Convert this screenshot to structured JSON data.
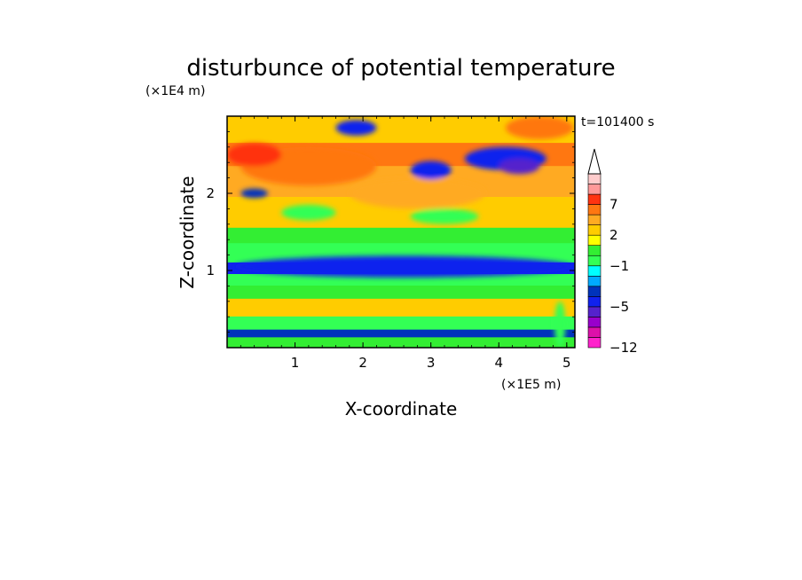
{
  "chart_data": {
    "type": "heatmap",
    "title": "disturbunce of potential temperature",
    "xlabel": "X-coordinate",
    "ylabel": "Z-coordinate",
    "x_scale_label": "(×1E5 m)",
    "y_scale_label": "(×1E4 m)",
    "time_label": "t=101400 s",
    "xlim": [
      0,
      5.12
    ],
    "ylim": [
      0,
      3.0
    ],
    "x_ticks": [
      "1",
      "2",
      "3",
      "4",
      "5"
    ],
    "x_tick_values": [
      1,
      2,
      3,
      4,
      5
    ],
    "y_ticks": [
      "1",
      "2"
    ],
    "y_tick_values": [
      1,
      2
    ],
    "colorbar": {
      "levels": [
        -12,
        -10,
        -8,
        -6,
        -5,
        -4,
        -3,
        -2,
        -1,
        0,
        1,
        2,
        3,
        5,
        7,
        9,
        11
      ],
      "labeled_levels": [
        "−12",
        "−5",
        "−1",
        "2",
        "7"
      ],
      "labeled_values": [
        -12,
        -5,
        -1,
        2,
        7
      ],
      "colors": [
        "#ff22cc",
        "#dd10aa",
        "#9900cc",
        "#5522cc",
        "#1122ee",
        "#0033bb",
        "#00aaff",
        "#00ffff",
        "#33ff55",
        "#33ee33",
        "#ffff00",
        "#ffcc00",
        "#ffaa22",
        "#ff7711",
        "#ff3311",
        "#ff9999",
        "#ffcccc"
      ],
      "extend": "max"
    },
    "bands": [
      {
        "z": [
          0.0,
          0.18
        ],
        "value": 0
      },
      {
        "z": [
          0.18,
          0.28
        ],
        "value": -4
      },
      {
        "z": [
          0.28,
          0.45
        ],
        "value": -1
      },
      {
        "z": [
          0.45,
          0.68
        ],
        "value": 2
      },
      {
        "z": [
          0.68,
          0.85
        ],
        "value": 0
      },
      {
        "z": [
          0.85,
          1.0
        ],
        "value": -1
      },
      {
        "z": [
          1.0,
          1.15
        ],
        "value": -5
      },
      {
        "z": [
          1.15,
          1.4
        ],
        "value": -1
      },
      {
        "z": [
          1.4,
          1.6
        ],
        "value": 0
      },
      {
        "z": [
          1.6,
          2.0
        ],
        "value": 2
      },
      {
        "z": [
          2.0,
          2.4
        ],
        "value": 3
      },
      {
        "z": [
          2.4,
          2.7
        ],
        "value": 5
      },
      {
        "z": [
          2.7,
          3.0
        ],
        "value": 2
      }
    ],
    "features": [
      {
        "x": 2.6,
        "z": 1.05,
        "rx": 2.5,
        "rz": 0.14,
        "value": -5
      },
      {
        "x": 1.2,
        "z": 2.35,
        "rx": 1.0,
        "rz": 0.25,
        "value": 5
      },
      {
        "x": 0.4,
        "z": 2.5,
        "rx": 0.4,
        "rz": 0.15,
        "value": 7
      },
      {
        "x": 2.8,
        "z": 2.0,
        "rx": 1.0,
        "rz": 0.2,
        "value": 3
      },
      {
        "x": 4.1,
        "z": 2.45,
        "rx": 0.6,
        "rz": 0.15,
        "value": -5
      },
      {
        "x": 4.3,
        "z": 2.35,
        "rx": 0.3,
        "rz": 0.1,
        "value": -6
      },
      {
        "x": 3.0,
        "z": 2.3,
        "rx": 0.3,
        "rz": 0.12,
        "value": -5
      },
      {
        "x": 1.9,
        "z": 2.85,
        "rx": 0.3,
        "rz": 0.1,
        "value": -5
      },
      {
        "x": 1.2,
        "z": 1.75,
        "rx": 0.4,
        "rz": 0.1,
        "value": -1
      },
      {
        "x": 0.4,
        "z": 2.0,
        "rx": 0.2,
        "rz": 0.06,
        "value": -4
      },
      {
        "x": 4.6,
        "z": 2.85,
        "rx": 0.5,
        "rz": 0.15,
        "value": 5
      },
      {
        "x": 3.2,
        "z": 1.7,
        "rx": 0.5,
        "rz": 0.1,
        "value": -1
      },
      {
        "x": 4.9,
        "z": 0.3,
        "rx": 0.08,
        "rz": 0.3,
        "value": -1
      }
    ]
  }
}
